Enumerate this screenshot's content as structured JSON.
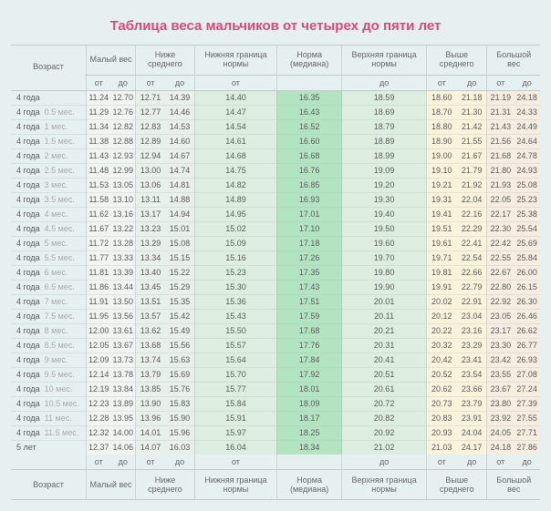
{
  "title": "Таблица веса мальчиков от четырех до пяти лет",
  "headers": {
    "age": "Возраст",
    "low": "Малый вес",
    "below": "Ниже среднего",
    "lower_bound": "Нижняя граница нормы",
    "norm": "Норма (медиана)",
    "upper_bound": "Верхняя граница нормы",
    "above": "Выше среднего",
    "high": "Большой вес",
    "from": "от",
    "to": "до"
  },
  "colors": {
    "title": "#d94879",
    "page_bg": "#e6f0f0",
    "low_bg": "#f0f5f2",
    "below_bg": "#e8f0ea",
    "bound_bg": "#ddeee0",
    "norm_bg": "#b3e4c2",
    "above_bg": "#faf3dc",
    "high_bg": "#f5ede0"
  },
  "rows": [
    {
      "age": "4 года",
      "sub": "",
      "v": [
        "11.24",
        "12.70",
        "12.71",
        "14.39",
        "14.40",
        "16.35",
        "18.59",
        "18.60",
        "21.18",
        "21.19",
        "24.18"
      ]
    },
    {
      "age": "4 года",
      "sub": "0.5 мес.",
      "v": [
        "11.29",
        "12.76",
        "12.77",
        "14.46",
        "14.47",
        "16.43",
        "18.69",
        "18.70",
        "21.30",
        "21.31",
        "24.33"
      ]
    },
    {
      "age": "4 года",
      "sub": "1 мес.",
      "v": [
        "11.34",
        "12.82",
        "12.83",
        "14.53",
        "14.54",
        "16.52",
        "18.79",
        "18.80",
        "21.42",
        "21.43",
        "24.49"
      ]
    },
    {
      "age": "4 года",
      "sub": "1.5 мес.",
      "v": [
        "11.38",
        "12.88",
        "12.89",
        "14.60",
        "14.61",
        "16.60",
        "18.89",
        "18.90",
        "21.55",
        "21.56",
        "24.64"
      ]
    },
    {
      "age": "4 года",
      "sub": "2 мес.",
      "v": [
        "11.43",
        "12.93",
        "12.94",
        "14.67",
        "14.68",
        "16.68",
        "18.99",
        "19.00",
        "21.67",
        "21.68",
        "24.78"
      ]
    },
    {
      "age": "4 года",
      "sub": "2.5 мес.",
      "v": [
        "11.48",
        "12.99",
        "13.00",
        "14.74",
        "14.75",
        "16.76",
        "19.09",
        "19.10",
        "21.79",
        "21.80",
        "24.93"
      ]
    },
    {
      "age": "4 года",
      "sub": "3 мес.",
      "v": [
        "11.53",
        "13.05",
        "13.06",
        "14.81",
        "14.82",
        "16.85",
        "19.20",
        "19.21",
        "21.92",
        "21.93",
        "25.08"
      ]
    },
    {
      "age": "4 года",
      "sub": "3.5 мес.",
      "v": [
        "11.58",
        "13.10",
        "13.11",
        "14.88",
        "14.89",
        "16.93",
        "19.30",
        "19.31",
        "22.04",
        "22.05",
        "25.23"
      ]
    },
    {
      "age": "4 года",
      "sub": "4 мес.",
      "v": [
        "11.62",
        "13.16",
        "13.17",
        "14.94",
        "14.95",
        "17.01",
        "19.40",
        "19.41",
        "22.16",
        "22.17",
        "25.38"
      ]
    },
    {
      "age": "4 года",
      "sub": "4.5 мес.",
      "v": [
        "11.67",
        "13.22",
        "13.23",
        "15.01",
        "15.02",
        "17.10",
        "19.50",
        "19.51",
        "22.29",
        "22.30",
        "25.54"
      ]
    },
    {
      "age": "4 года",
      "sub": "5 мес.",
      "v": [
        "11.72",
        "13.28",
        "13.29",
        "15.08",
        "15.09",
        "17.18",
        "19.60",
        "19.61",
        "22.41",
        "22.42",
        "25.69"
      ]
    },
    {
      "age": "4 года",
      "sub": "5.5 мес.",
      "v": [
        "11.77",
        "13.33",
        "13.34",
        "15.15",
        "15.16",
        "17.26",
        "19.70",
        "19.71",
        "22.54",
        "22.55",
        "25.84"
      ]
    },
    {
      "age": "4 года",
      "sub": "6 мес.",
      "v": [
        "11.81",
        "13.39",
        "13.40",
        "15.22",
        "15.23",
        "17.35",
        "19.80",
        "19.81",
        "22.66",
        "22.67",
        "26.00"
      ]
    },
    {
      "age": "4 года",
      "sub": "6.5 мес.",
      "v": [
        "11.86",
        "13.44",
        "13.45",
        "15.29",
        "15.30",
        "17.43",
        "19.90",
        "19.91",
        "22.79",
        "22.80",
        "26.15"
      ]
    },
    {
      "age": "4 года",
      "sub": "7 мес.",
      "v": [
        "11.91",
        "13.50",
        "13.51",
        "15.35",
        "15.36",
        "17.51",
        "20.01",
        "20.02",
        "22.91",
        "22.92",
        "26.30"
      ]
    },
    {
      "age": "4 года",
      "sub": "7.5 мес.",
      "v": [
        "11.95",
        "13.56",
        "13.57",
        "15.42",
        "15.43",
        "17.59",
        "20.11",
        "20.12",
        "23.04",
        "23.05",
        "26.46"
      ]
    },
    {
      "age": "4 года",
      "sub": "8 мес.",
      "v": [
        "12.00",
        "13.61",
        "13.62",
        "15.49",
        "15.50",
        "17.68",
        "20.21",
        "20.22",
        "23.16",
        "23.17",
        "26.62"
      ]
    },
    {
      "age": "4 года",
      "sub": "8.5 мес.",
      "v": [
        "12.05",
        "13.67",
        "13.68",
        "15.56",
        "15.57",
        "17.76",
        "20.31",
        "20.32",
        "23.29",
        "23.30",
        "26.77"
      ]
    },
    {
      "age": "4 года",
      "sub": "9 мес.",
      "v": [
        "12.09",
        "13.73",
        "13.74",
        "15.63",
        "15.64",
        "17.84",
        "20.41",
        "20.42",
        "23.41",
        "23.42",
        "26.93"
      ]
    },
    {
      "age": "4 года",
      "sub": "9.5 мес.",
      "v": [
        "12.14",
        "13.78",
        "13.79",
        "15.69",
        "15.70",
        "17.92",
        "20.51",
        "20.52",
        "23.54",
        "23.55",
        "27.08"
      ]
    },
    {
      "age": "4 года",
      "sub": "10 мес.",
      "v": [
        "12.19",
        "13.84",
        "13.85",
        "15.76",
        "15.77",
        "18.01",
        "20.61",
        "20.62",
        "23.66",
        "23.67",
        "27.24"
      ]
    },
    {
      "age": "4 года",
      "sub": "10.5 мес.",
      "v": [
        "12.23",
        "13.89",
        "13.90",
        "15.83",
        "15.84",
        "18.09",
        "20.72",
        "20.73",
        "23.79",
        "23.80",
        "27.39"
      ]
    },
    {
      "age": "4 года",
      "sub": "11 мес.",
      "v": [
        "12.28",
        "13.95",
        "13.96",
        "15.90",
        "15.91",
        "18.17",
        "20.82",
        "20.83",
        "23.91",
        "23.92",
        "27.55"
      ]
    },
    {
      "age": "4 года",
      "sub": "11.5 мес.",
      "v": [
        "12.32",
        "14.00",
        "14.01",
        "15.96",
        "15.97",
        "18.25",
        "20.92",
        "20.93",
        "24.04",
        "24.05",
        "27.71"
      ]
    },
    {
      "age": "5 лет",
      "sub": "",
      "v": [
        "12.37",
        "14.06",
        "14.07",
        "16.03",
        "16.04",
        "18.34",
        "21.02",
        "21.03",
        "24.17",
        "24.18",
        "27.86"
      ]
    }
  ]
}
